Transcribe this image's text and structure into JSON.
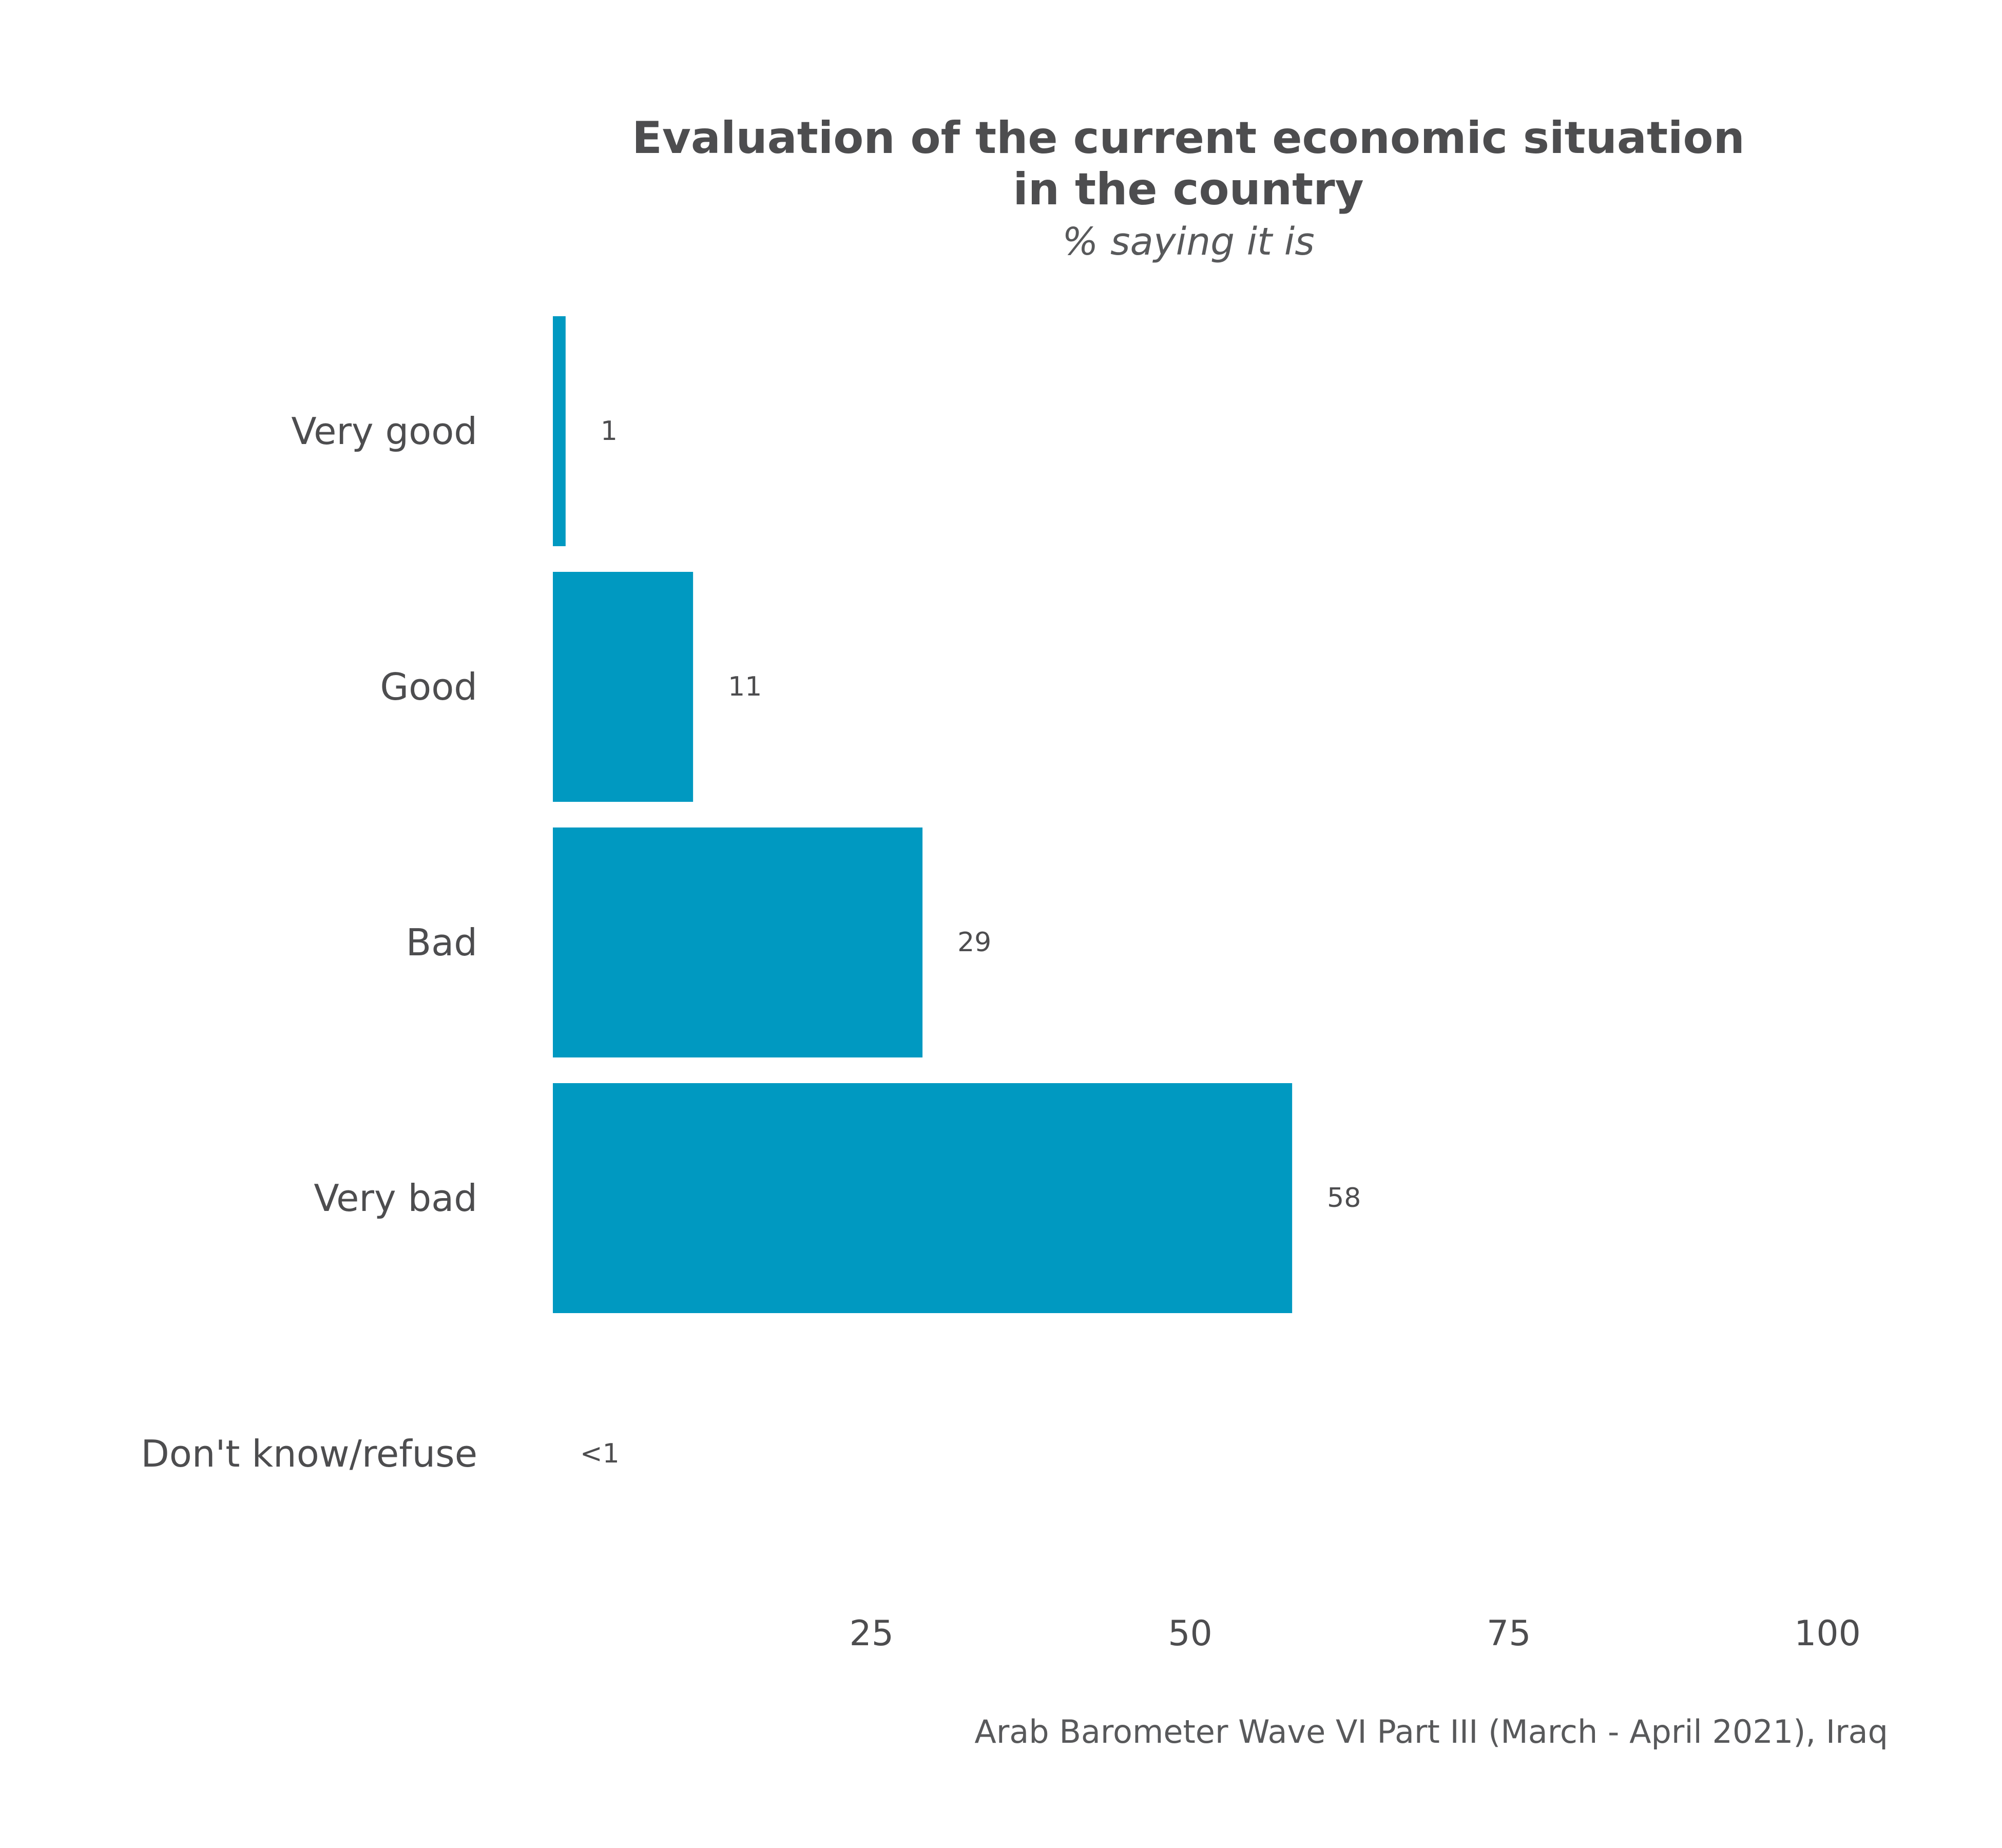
{
  "chart_data": {
    "type": "bar",
    "orientation": "horizontal",
    "title_line1": "Evaluation of the current economic situation",
    "title_line2": "in the country",
    "subtitle": "% saying it is",
    "caption": "Arab Barometer Wave VI Part III (March - April 2021), Iraq",
    "categories": [
      "Very good",
      "Good",
      "Bad",
      "Very bad",
      "Don't know/refuse"
    ],
    "values": [
      1,
      11,
      29,
      58,
      0.3
    ],
    "value_labels": [
      "1",
      "11",
      "29",
      "58",
      "<1"
    ],
    "xlim": [
      0,
      100
    ],
    "x_ticks": [
      25,
      50,
      75,
      100
    ],
    "x_tick_labels": [
      "25",
      "50",
      "75",
      "100"
    ],
    "bar_color": "#0099c1",
    "grid": false,
    "legend": "none"
  }
}
